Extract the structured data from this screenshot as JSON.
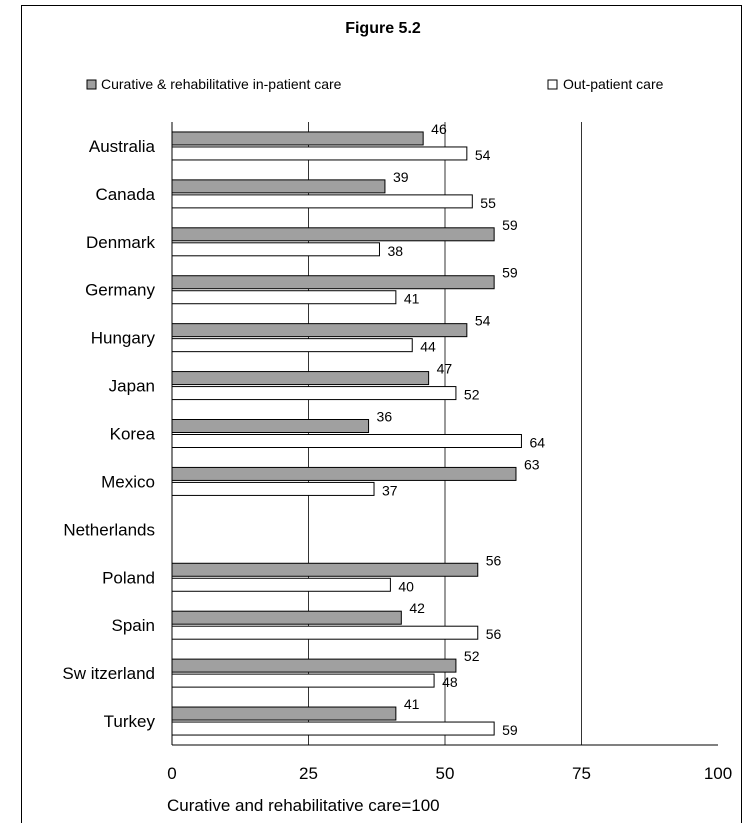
{
  "chart_data": {
    "type": "bar",
    "orientation": "horizontal",
    "title": "Figure 5.2",
    "xlabel": "Curative and rehabilitative care=100",
    "ylabel": "",
    "xlim": [
      0,
      100
    ],
    "xticks": [
      "0",
      "25",
      "50",
      "75",
      "100"
    ],
    "grid": "vertical",
    "legend_position": "top",
    "categories": [
      "Australia",
      "Canada",
      "Denmark",
      "Germany",
      "Hungary",
      "Japan",
      "Korea",
      "Mexico",
      "Netherlands",
      "Poland",
      "Spain",
      "Sw itzerland",
      "Turkey"
    ],
    "series": [
      {
        "name": "Curative & rehabilitative in-patient care",
        "color": "#a0a0a0",
        "values": [
          46,
          39,
          59,
          59,
          54,
          47,
          36,
          63,
          null,
          56,
          42,
          52,
          41
        ],
        "labels": [
          "46",
          "39",
          "59",
          "59",
          "54",
          "47",
          "36",
          "63",
          "",
          "56",
          "42",
          "52",
          "41"
        ]
      },
      {
        "name": "Out-patient care",
        "color": "#ffffff",
        "values": [
          54,
          55,
          38,
          41,
          44,
          52,
          64,
          37,
          null,
          40,
          56,
          48,
          59
        ],
        "labels": [
          "54",
          "55",
          "38",
          "41",
          "44",
          "52",
          "64",
          "37",
          "",
          "40",
          "56",
          "48",
          "59"
        ]
      }
    ]
  }
}
